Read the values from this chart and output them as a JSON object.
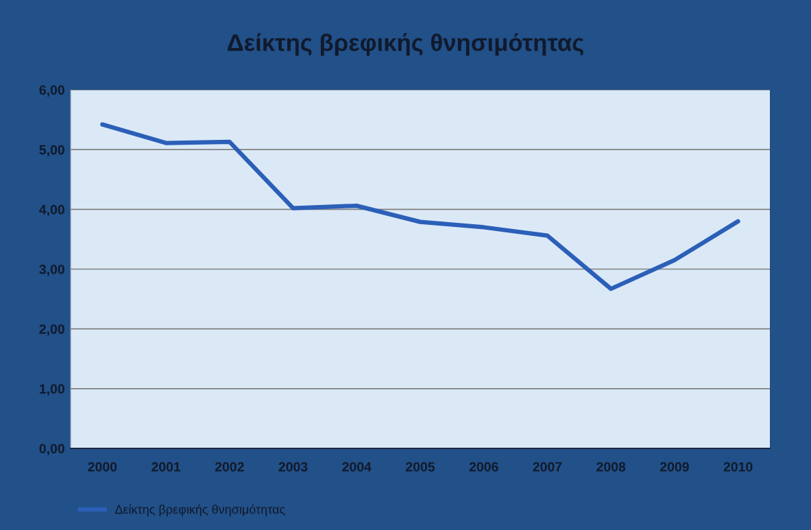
{
  "chart_data": {
    "type": "line",
    "title": "Δείκτης βρεφικής θνησιμότητας",
    "categories": [
      "2000",
      "2001",
      "2002",
      "2003",
      "2004",
      "2005",
      "2006",
      "2007",
      "2008",
      "2009",
      "2010"
    ],
    "series": [
      {
        "name": "Δείκτης βρεφικής θνησιμότητας",
        "color": "#2b5fb8",
        "values": [
          5.42,
          5.11,
          5.13,
          4.02,
          4.06,
          3.79,
          3.7,
          3.56,
          2.67,
          3.15,
          3.8
        ]
      }
    ],
    "ylim": [
      0,
      6
    ],
    "yticks": [
      {
        "value": 0,
        "label": "0,00"
      },
      {
        "value": 1,
        "label": "1,00"
      },
      {
        "value": 2,
        "label": "2,00"
      },
      {
        "value": 3,
        "label": "3,00"
      },
      {
        "value": 4,
        "label": "4,00"
      },
      {
        "value": 5,
        "label": "5,00"
      },
      {
        "value": 6,
        "label": "6,00"
      }
    ],
    "grid": "y",
    "legend": "bottom left",
    "line_style": "solid"
  }
}
